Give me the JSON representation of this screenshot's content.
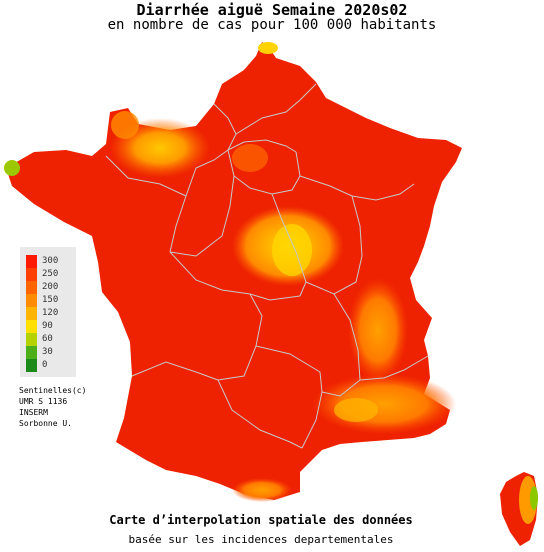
{
  "header": {
    "title": "Diarrhée aiguë Semaine 2020s02",
    "subtitle": "en nombre de cas pour 100 000 habitants"
  },
  "legend": {
    "items": [
      {
        "label": "300",
        "color": "#ff1a00"
      },
      {
        "label": "250",
        "color": "#ff4000"
      },
      {
        "label": "200",
        "color": "#ff6400"
      },
      {
        "label": "150",
        "color": "#ff8c00"
      },
      {
        "label": "120",
        "color": "#ffb400"
      },
      {
        "label": "90",
        "color": "#ffe000"
      },
      {
        "label": "60",
        "color": "#b4d200"
      },
      {
        "label": "30",
        "color": "#4caf1a"
      },
      {
        "label": "0",
        "color": "#1b8a1b"
      }
    ]
  },
  "credits": {
    "line1": "Sentinelles(c)",
    "line2": "UMR S 1136",
    "line3": "INSERM",
    "line4": "Sorbonne U."
  },
  "footer": {
    "line1": "Carte d’interpolation spatiale des données",
    "line2": "basée sur les incidences departementales"
  },
  "colors": {
    "base": "#ee2200",
    "border": "#c8c8c8",
    "hot": "#ff8c00",
    "warm": "#ffb400",
    "pale": "#ffd200"
  }
}
